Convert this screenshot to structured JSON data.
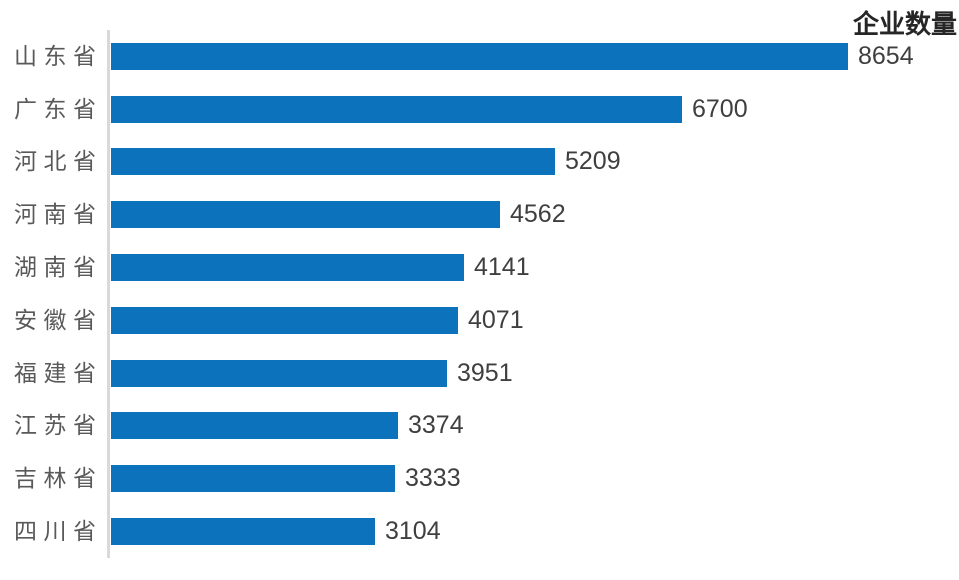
{
  "chart_data": {
    "type": "bar",
    "orientation": "horizontal",
    "title": "企业数量",
    "categories": [
      "山东省",
      "广东省",
      "河北省",
      "河南省",
      "湖南省",
      "安徽省",
      "福建省",
      "江苏省",
      "吉林省",
      "四川省"
    ],
    "values": [
      8654,
      6700,
      5209,
      4562,
      4141,
      4071,
      3951,
      3374,
      3333,
      3104
    ],
    "xlabel": "",
    "ylabel": "",
    "xlim": [
      0,
      8654
    ],
    "grid": false,
    "legend_position": "none",
    "data_labels": true,
    "colors": {
      "bar": "#0C72BB",
      "axis_line": "#D9D9D9",
      "category_label": "#595959",
      "value_label": "#3F3F3F",
      "title": "#262626"
    }
  }
}
